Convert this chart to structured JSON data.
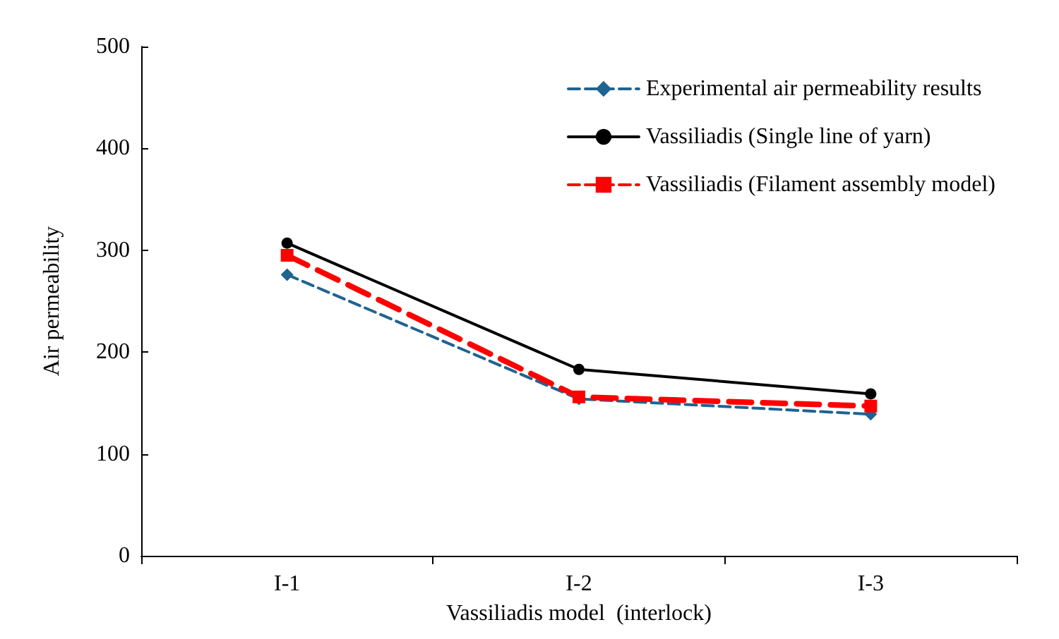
{
  "chart_data": {
    "type": "line",
    "xlabel": "Vassiliadis model  (interlock)",
    "ylabel": "Air permeability",
    "categories": [
      "I-1",
      "I-2",
      "I-3"
    ],
    "series": [
      {
        "name": "Experimental air permeability results",
        "color": "#1f6391",
        "values": [
          276,
          154,
          139
        ],
        "marker": "diamond",
        "line_style": "dashed"
      },
      {
        "name": "Vassiliadis (Single line of yarn)",
        "color": "#000000",
        "values": [
          307,
          183,
          159
        ],
        "marker": "circle",
        "line_style": "solid"
      },
      {
        "name": "Vassiliadis (Filament assembly model)",
        "color": "#ff0000",
        "values": [
          295,
          156,
          147
        ],
        "marker": "square",
        "line_style": "dashed"
      }
    ],
    "ylim": [
      0,
      500
    ],
    "yticks": [
      0,
      100,
      200,
      300,
      400,
      500
    ],
    "grid": false,
    "legend": "top right"
  }
}
